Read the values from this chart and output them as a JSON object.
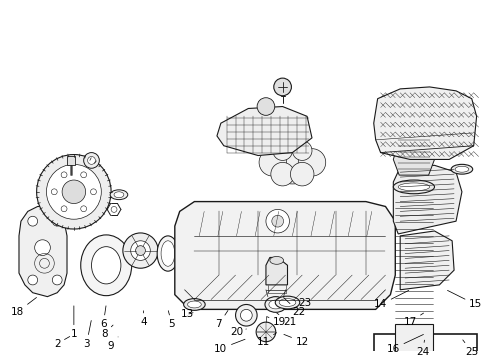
{
  "bg_color": "#ffffff",
  "line_color": "#1a1a1a",
  "fig_width": 4.85,
  "fig_height": 3.57,
  "dpi": 100
}
